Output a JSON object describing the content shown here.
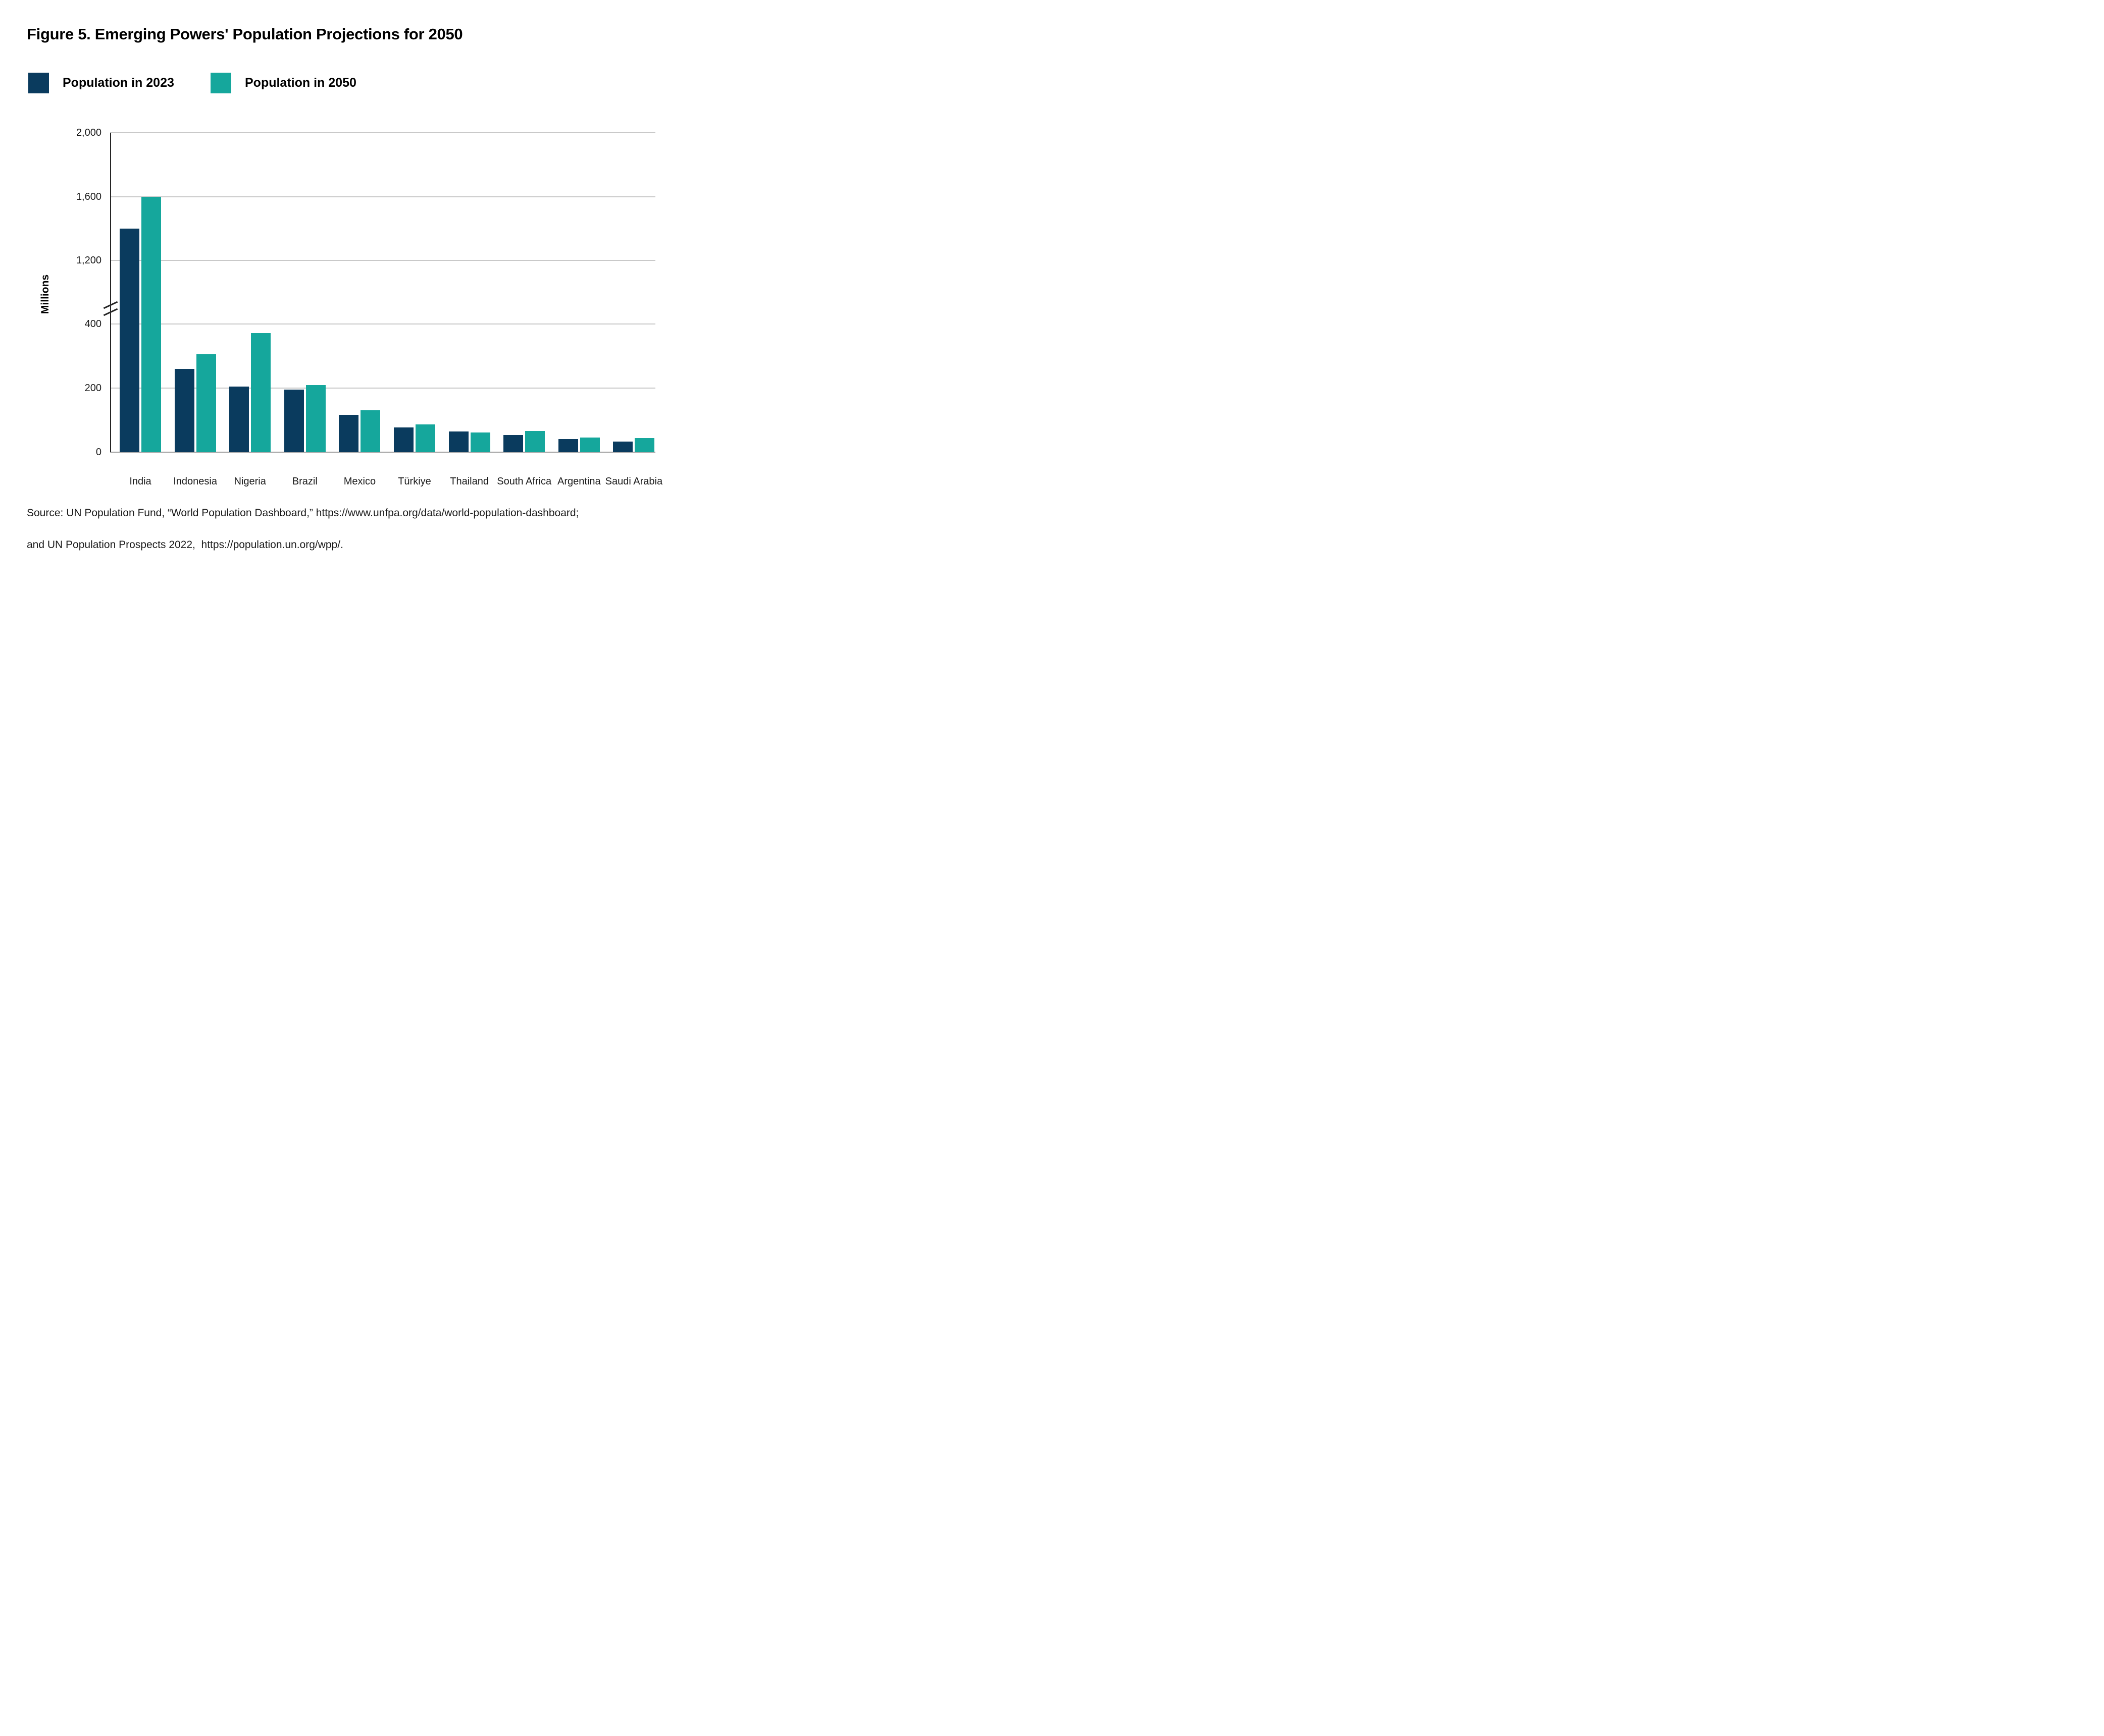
{
  "figure": {
    "title": "Figure 5. Emerging Powers' Population Projections for 2050",
    "source_line1": "Source: UN Population Fund, “World Population Dashboard,” https://www.unfpa.org/data/world-population-dashboard;",
    "source_line2": "and UN Population Prospects 2022,  https://population.un.org/wpp/."
  },
  "legend": [
    {
      "label": "Population in 2023",
      "color": "#0a3b5e"
    },
    {
      "label": "Population in 2050",
      "color": "#15a79c"
    }
  ],
  "chart_data": {
    "type": "bar",
    "title": "Figure 5. Emerging Powers' Population Projections for 2050",
    "categories": [
      "India",
      "Indonesia",
      "Nigeria",
      "Brazil",
      "Mexico",
      "Türkiye",
      "Thailand",
      "South Africa",
      "Argentina",
      "Saudi Arabia"
    ],
    "series": [
      {
        "name": "Population in 2023",
        "color": "#0a3b5e",
        "values": [
          1400,
          260,
          205,
          195,
          116,
          77,
          65,
          54,
          41,
          33
        ]
      },
      {
        "name": "Population in 2050",
        "color": "#15a79c",
        "values": [
          1600,
          305,
          372,
          210,
          130,
          87,
          62,
          66,
          46,
          44
        ]
      }
    ],
    "xlabel": "",
    "ylabel": "Millions",
    "unit": "Millions",
    "y_ticks": [
      {
        "value": 2000,
        "label": "2,000"
      },
      {
        "value": 1600,
        "label": "1,600"
      },
      {
        "value": 1200,
        "label": "1,200"
      },
      {
        "value": 400,
        "label": "400"
      },
      {
        "value": 200,
        "label": "200"
      },
      {
        "value": 0,
        "label": "0"
      }
    ],
    "axis_break": {
      "between": [
        400,
        1200
      ]
    },
    "ylim_lower_section": [
      0,
      400
    ],
    "ylim_upper_section": [
      1200,
      2000
    ],
    "grid": "horizontal",
    "legend_position": "top-left"
  }
}
